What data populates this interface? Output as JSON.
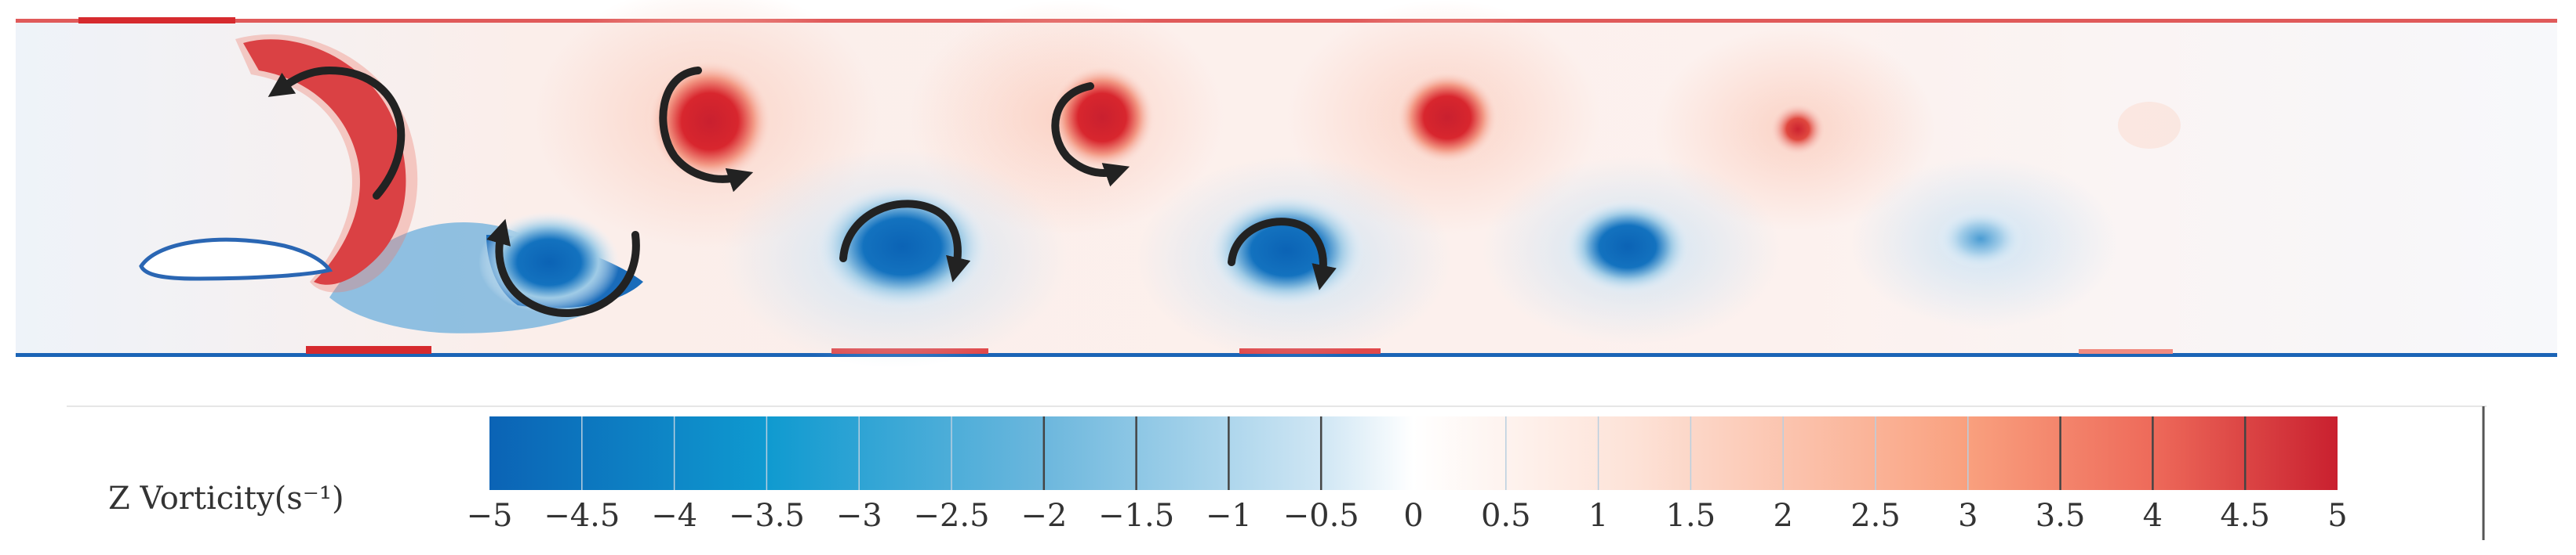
{
  "figure": {
    "colorbar": {
      "label": "Z Vorticity(s⁻¹)",
      "min": -5,
      "max": 5,
      "step": 0.5,
      "ticks": [
        "-5",
        "-4.5",
        "-4",
        "-3.5",
        "-3",
        "-2.5",
        "-2",
        "-1.5",
        "-1",
        "-0.5",
        "0",
        "0.5",
        "1",
        "1.5",
        "2",
        "2.5",
        "3",
        "3.5",
        "4",
        "4.5",
        "5"
      ],
      "colors": {
        "negative_max": "#0b63b5",
        "negative_mid": "#0f9ad0",
        "neutral": "#ffffff",
        "positive_mid": "#f9a07e",
        "positive_max": "#c9202f"
      }
    },
    "field_colors": {
      "background": "#f4f6fb",
      "wall": "#d62a2e",
      "wall_blue": "#1b64b6"
    },
    "rotation_arrow_color": "#222222",
    "rotation_arrow_count": 6
  }
}
